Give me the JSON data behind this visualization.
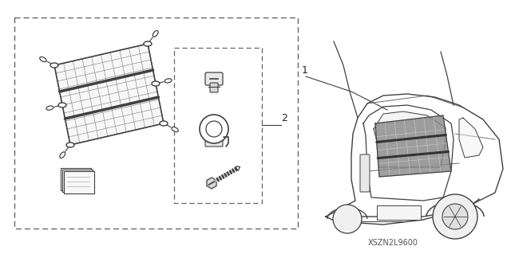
{
  "part_code": "XSZN2L9600",
  "bg_color": "#ffffff",
  "line_color": "#404040",
  "dashed_color": "#666666",
  "text_color": "#222222",
  "fig_width": 6.4,
  "fig_height": 3.19,
  "dpi": 100
}
